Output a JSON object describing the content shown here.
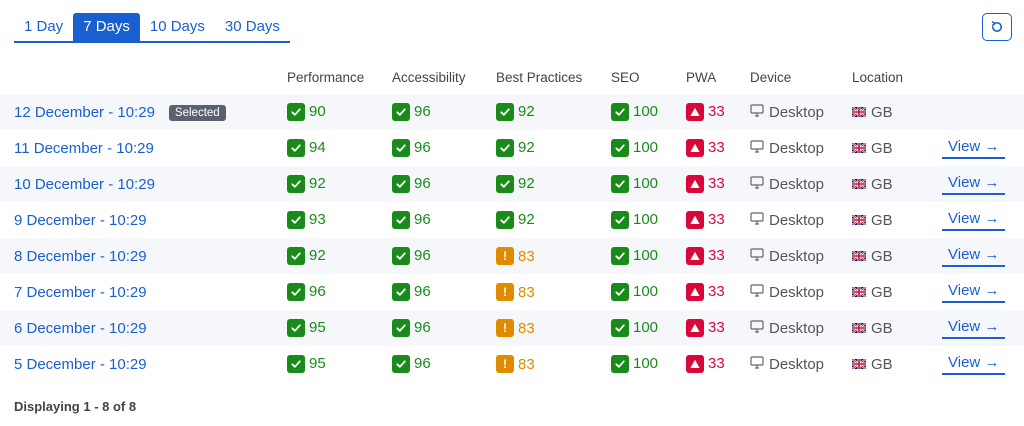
{
  "tabs": [
    {
      "label": "1 Day",
      "active": false
    },
    {
      "label": "7 Days",
      "active": true
    },
    {
      "label": "10 Days",
      "active": false
    },
    {
      "label": "30 Days",
      "active": false
    }
  ],
  "refresh": {
    "icon": "refresh-icon"
  },
  "table": {
    "headers": {
      "performance": "Performance",
      "accessibility": "Accessibility",
      "best_practices": "Best Practices",
      "seo": "SEO",
      "pwa": "PWA",
      "device": "Device",
      "location": "Location"
    },
    "selected_label": "Selected",
    "view_label": "View →",
    "rows": [
      {
        "date": "12 December - 10:29",
        "selected": true,
        "performance": "90",
        "accessibility": "96",
        "best_practices": "92",
        "best_practices_status": "good",
        "seo": "100",
        "pwa": "33",
        "device": "Desktop",
        "location": "GB"
      },
      {
        "date": "11 December - 10:29",
        "selected": false,
        "performance": "94",
        "accessibility": "96",
        "best_practices": "92",
        "best_practices_status": "good",
        "seo": "100",
        "pwa": "33",
        "device": "Desktop",
        "location": "GB"
      },
      {
        "date": "10 December - 10:29",
        "selected": false,
        "performance": "92",
        "accessibility": "96",
        "best_practices": "92",
        "best_practices_status": "good",
        "seo": "100",
        "pwa": "33",
        "device": "Desktop",
        "location": "GB"
      },
      {
        "date": "9 December - 10:29",
        "selected": false,
        "performance": "93",
        "accessibility": "96",
        "best_practices": "92",
        "best_practices_status": "good",
        "seo": "100",
        "pwa": "33",
        "device": "Desktop",
        "location": "GB"
      },
      {
        "date": "8 December - 10:29",
        "selected": false,
        "performance": "92",
        "accessibility": "96",
        "best_practices": "83",
        "best_practices_status": "average",
        "seo": "100",
        "pwa": "33",
        "device": "Desktop",
        "location": "GB"
      },
      {
        "date": "7 December - 10:29",
        "selected": false,
        "performance": "96",
        "accessibility": "96",
        "best_practices": "83",
        "best_practices_status": "average",
        "seo": "100",
        "pwa": "33",
        "device": "Desktop",
        "location": "GB"
      },
      {
        "date": "6 December - 10:29",
        "selected": false,
        "performance": "95",
        "accessibility": "96",
        "best_practices": "83",
        "best_practices_status": "average",
        "seo": "100",
        "pwa": "33",
        "device": "Desktop",
        "location": "GB"
      },
      {
        "date": "5 December - 10:29",
        "selected": false,
        "performance": "95",
        "accessibility": "96",
        "best_practices": "83",
        "best_practices_status": "average",
        "seo": "100",
        "pwa": "33",
        "device": "Desktop",
        "location": "GB"
      }
    ]
  },
  "footer": {
    "text": "Displaying 1 - 8 of 8"
  },
  "colors": {
    "accent": "#1a5fd0",
    "good": "#1a8a1a",
    "average": "#e08b00",
    "poor": "#d9083b"
  }
}
